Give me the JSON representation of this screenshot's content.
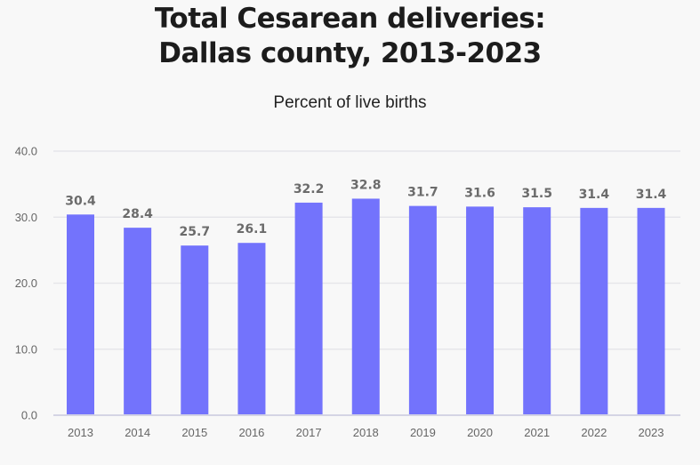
{
  "chart_data": {
    "type": "bar",
    "title": "Total Cesarean deliveries:\nDallas county, 2013-2023",
    "title_lines": [
      "Total Cesarean deliveries:",
      "Dallas county, 2013-2023"
    ],
    "subtitle": "Percent of live births",
    "categories": [
      "2013",
      "2014",
      "2015",
      "2016",
      "2017",
      "2018",
      "2019",
      "2020",
      "2021",
      "2022",
      "2023"
    ],
    "values": [
      30.4,
      28.4,
      25.7,
      26.1,
      32.2,
      32.8,
      31.7,
      31.6,
      31.5,
      31.4,
      31.4
    ],
    "data_labels": [
      "30.4",
      "28.4",
      "25.7",
      "26.1",
      "32.2",
      "32.8",
      "31.7",
      "31.6",
      "31.5",
      "31.4",
      "31.4"
    ],
    "ylim": [
      0,
      40
    ],
    "yticks": [
      "0.0",
      "10.0",
      "20.0",
      "30.0",
      "40.0"
    ],
    "ytick_values": [
      0,
      10,
      20,
      30,
      40
    ],
    "grid": true,
    "legend": "none",
    "bar_color": "#7373fc",
    "background": "#f8f8f8"
  }
}
